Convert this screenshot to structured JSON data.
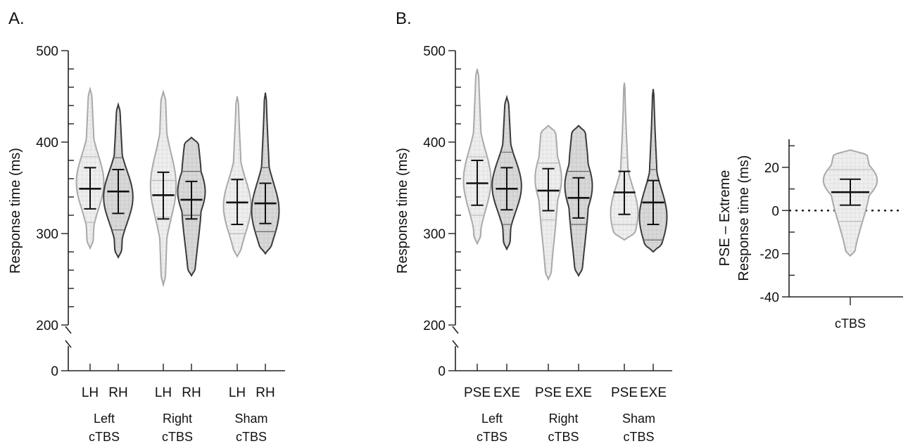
{
  "panels": [
    {
      "label": "A.",
      "chart_data": {
        "type": "violin",
        "ylabel": "Response time (ms)",
        "yticks": [
          200,
          300,
          400,
          500
        ],
        "ybreak_ticks": [
          0
        ],
        "ylim": [
          200,
          500
        ],
        "groups": [
          {
            "label_lines": [
              "Left",
              "cTBS"
            ],
            "items": [
              {
                "label": "LH",
                "shade": "light",
                "mean": 349,
                "err": [
                  327,
                  372
                ],
                "min": 284,
                "max": 458,
                "quartiles": [
                  312,
                  349,
                  384
                ],
                "mode": 356,
                "width": 0.75,
                "shape": "top"
              },
              {
                "label": "RH",
                "shade": "dark",
                "mean": 346,
                "err": [
                  322,
                  370
                ],
                "min": 274,
                "max": 441,
                "quartiles": [
                  304,
                  346,
                  383
                ],
                "mode": 340,
                "width": 0.8,
                "shape": "top"
              }
            ]
          },
          {
            "label_lines": [
              "Right",
              "cTBS"
            ],
            "items": [
              {
                "label": "LH",
                "shade": "light",
                "mean": 342,
                "err": [
                  316,
                  367
                ],
                "min": 244,
                "max": 455,
                "quartiles": [
                  318,
                  342,
                  358
                ],
                "mode": 352,
                "width": 0.7,
                "shape": "top"
              },
              {
                "label": "RH",
                "shade": "dark",
                "mean": 337,
                "err": [
                  316,
                  357
                ],
                "min": 254,
                "max": 405,
                "quartiles": [
                  320,
                  337,
                  368
                ],
                "mode": 346,
                "width": 0.75,
                "shape": "flat"
              }
            ]
          },
          {
            "label_lines": [
              "Sham",
              "cTBS"
            ],
            "items": [
              {
                "label": "LH",
                "shade": "light",
                "mean": 334,
                "err": [
                  310,
                  359
                ],
                "min": 275,
                "max": 450,
                "quartiles": [
                  300,
                  334,
                  360
                ],
                "mode": 330,
                "width": 0.75,
                "shape": "top"
              },
              {
                "label": "RH",
                "shade": "dark",
                "mean": 333,
                "err": [
                  311,
                  355
                ],
                "min": 278,
                "max": 454,
                "quartiles": [
                  302,
                  333,
                  372
                ],
                "mode": 325,
                "width": 0.75,
                "shape": "top"
              }
            ]
          }
        ]
      }
    },
    {
      "label": "B.",
      "chart_data": {
        "type": "violin",
        "ylabel": "Response time (ms)",
        "yticks": [
          200,
          300,
          400,
          500
        ],
        "ybreak_ticks": [
          0
        ],
        "ylim": [
          200,
          500
        ],
        "groups": [
          {
            "label_lines": [
              "Left",
              "cTBS"
            ],
            "items": [
              {
                "label": "PSE",
                "shade": "light",
                "mean": 355,
                "err": [
                  331,
                  380
                ],
                "min": 289,
                "max": 480,
                "quartiles": [
                  320,
                  355,
                  384
                ],
                "mode": 358,
                "width": 0.75,
                "shape": "top"
              },
              {
                "label": "EXE",
                "shade": "dark",
                "mean": 349,
                "err": [
                  326,
                  372
                ],
                "min": 283,
                "max": 449,
                "quartiles": [
                  310,
                  349,
                  389
                ],
                "mode": 352,
                "width": 0.8,
                "shape": "top"
              }
            ]
          },
          {
            "label_lines": [
              "Right",
              "cTBS"
            ],
            "items": [
              {
                "label": "PSE",
                "shade": "light",
                "mean": 347,
                "err": [
                  325,
                  371
                ],
                "min": 250,
                "max": 418,
                "quartiles": [
                  315,
                  347,
                  377
                ],
                "mode": 360,
                "width": 0.72,
                "shape": "flat"
              },
              {
                "label": "EXE",
                "shade": "dark",
                "mean": 339,
                "err": [
                  317,
                  361
                ],
                "min": 254,
                "max": 418,
                "quartiles": [
                  310,
                  339,
                  368
                ],
                "mode": 352,
                "width": 0.75,
                "shape": "flat"
              }
            ]
          },
          {
            "label_lines": [
              "Sham",
              "cTBS"
            ],
            "items": [
              {
                "label": "PSE",
                "shade": "light",
                "mean": 345,
                "err": [
                  321,
                  368
                ],
                "min": 293,
                "max": 465,
                "quartiles": [
                  310,
                  345,
                  383
                ],
                "mode": 322,
                "width": 0.75,
                "shape": "top"
              },
              {
                "label": "EXE",
                "shade": "dark",
                "mean": 334,
                "err": [
                  310,
                  358
                ],
                "min": 280,
                "max": 458,
                "quartiles": [
                  293,
                  334,
                  370
                ],
                "mode": 318,
                "width": 0.75,
                "shape": "top"
              }
            ]
          }
        ]
      }
    },
    {
      "label": "",
      "chart_data": {
        "type": "violin",
        "ylabel_lines": [
          "PSE – Extreme",
          "Response time (ms)"
        ],
        "yticks": [
          -40,
          -20,
          0,
          20
        ],
        "ylim": [
          -40,
          33
        ],
        "reference_line": 0,
        "groups": [
          {
            "label_lines": [
              "cTBS"
            ],
            "items": [
              {
                "label": "",
                "shade": "light",
                "mean": 8.5,
                "err": [
                  2.5,
                  14.5
                ],
                "min": -21,
                "max": 28,
                "quartiles": [
                  -5,
                  8.5,
                  19
                ],
                "mode": 14,
                "width": 0.85,
                "shape": "flat"
              }
            ]
          }
        ]
      }
    }
  ],
  "colors": {
    "axis": "#222222",
    "light_fill": "#efefef",
    "light_stroke": "#a9a9a9",
    "dark_fill": "#d9d9d9",
    "dark_stroke": "#3a3a3a",
    "mean_bar": "#111111"
  }
}
